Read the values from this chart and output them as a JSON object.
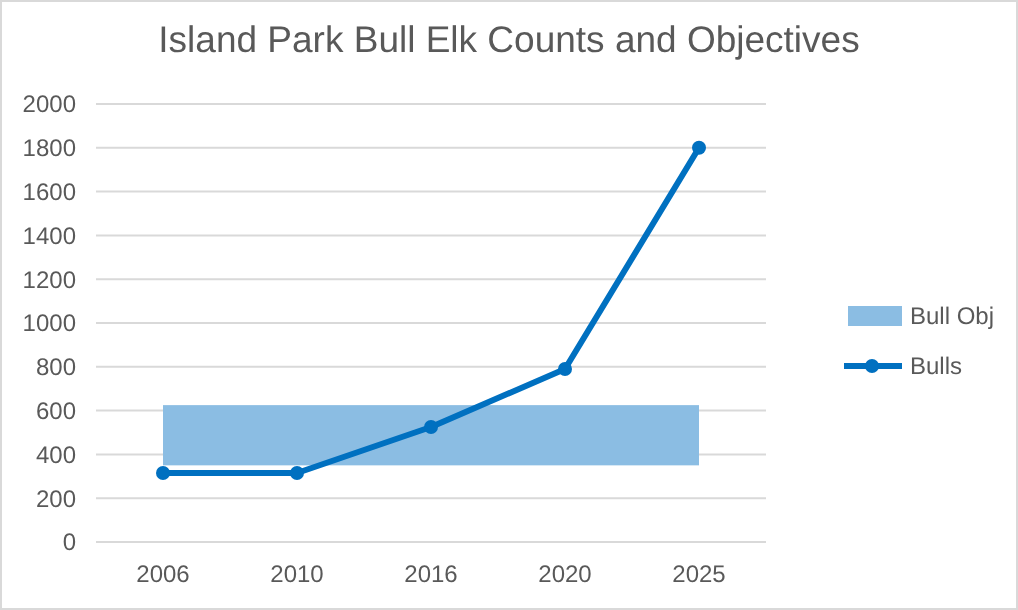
{
  "chart_data": {
    "type": "line",
    "title": "Island Park Bull Elk Counts and Objectives",
    "categories": [
      "2006",
      "2010",
      "2016",
      "2020",
      "2025"
    ],
    "series": [
      {
        "name": "Bulls",
        "color": "#0070c0",
        "values": [
          315,
          315,
          525,
          790,
          1800
        ]
      }
    ],
    "bands": [
      {
        "axis": "y",
        "from": 350,
        "to": 625,
        "label": "Bull Obj",
        "color": "#8bbde3"
      }
    ],
    "ylim": [
      0,
      2000
    ],
    "yticks": [
      0,
      200,
      400,
      600,
      800,
      1000,
      1200,
      1400,
      1600,
      1800,
      2000
    ],
    "grid": "y",
    "legend": "right",
    "marker": "circle",
    "line_style": "solid"
  }
}
